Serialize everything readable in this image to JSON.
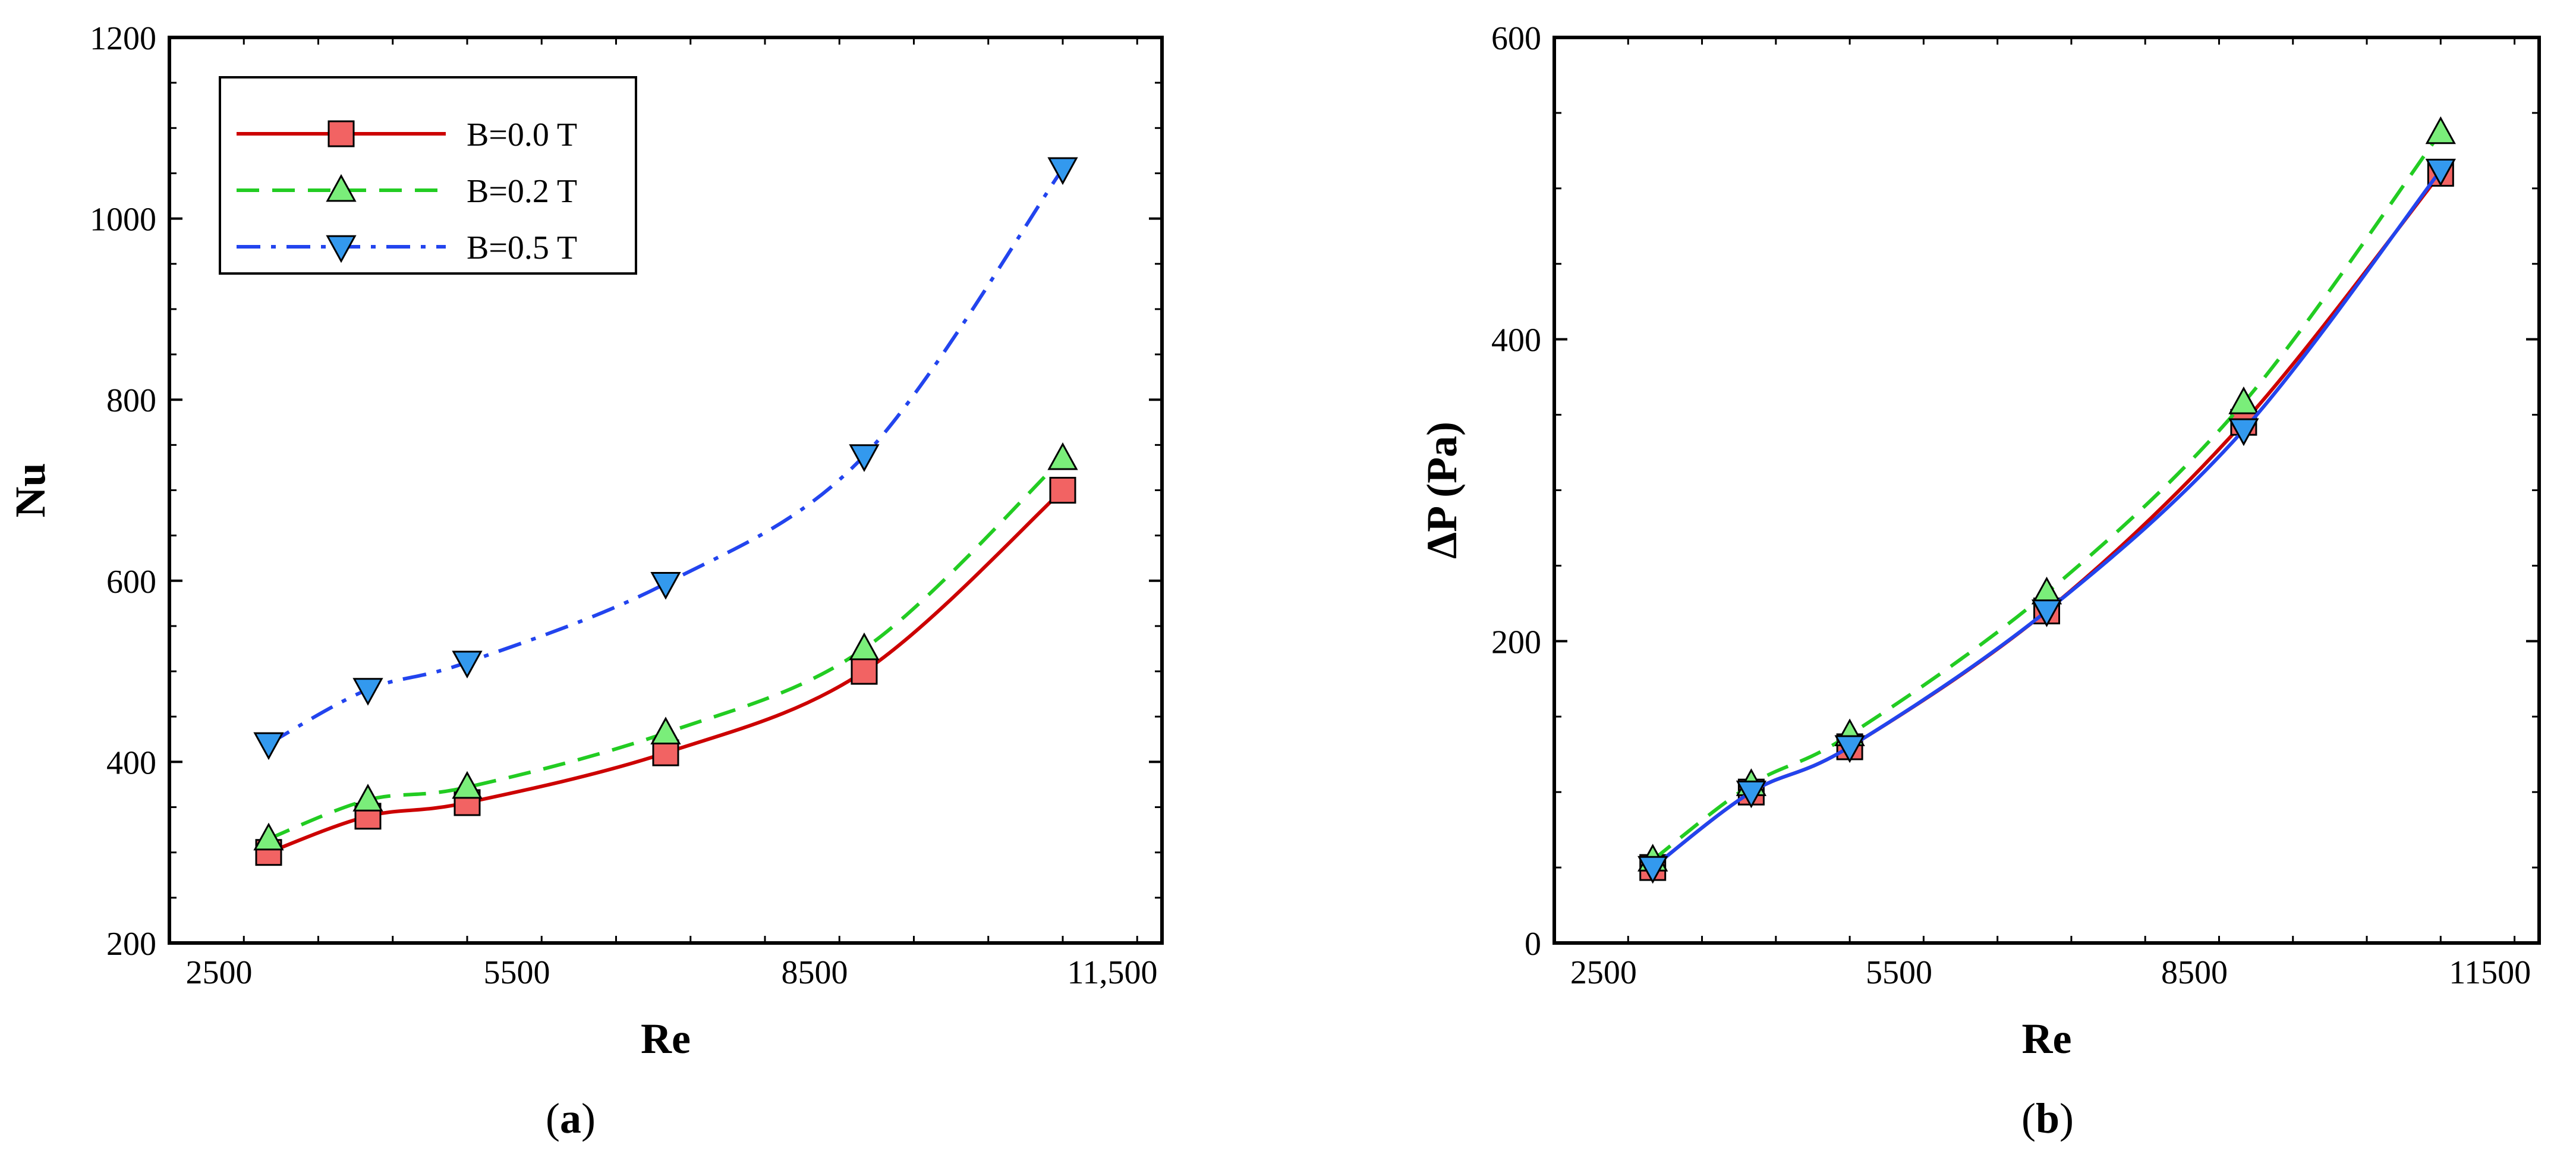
{
  "chart_data": [
    {
      "type": "line",
      "panel": "a",
      "caption_open": "(",
      "caption_label": "a",
      "caption_close": ")",
      "xlabel": "Re",
      "ylabel": "Nu",
      "xlim": [
        2000,
        12000
      ],
      "ylim": [
        200,
        1200
      ],
      "xticks": [
        2500,
        5500,
        8500,
        11500
      ],
      "xtick_labels": [
        "2500",
        "5500",
        "8500",
        "11,500"
      ],
      "yticks": [
        200,
        400,
        600,
        800,
        1000,
        1200
      ],
      "ytick_labels": [
        "200",
        "400",
        "600",
        "800",
        "1000",
        "1200"
      ],
      "legend_position": "top-left",
      "series": [
        {
          "name": "B=0.0 T",
          "color": "#cc0000",
          "marker_fill": "#f26363",
          "marker": "square",
          "dash": "solid",
          "x": [
            3000,
            4000,
            5000,
            7000,
            9000,
            11000
          ],
          "values": [
            300,
            340,
            355,
            410,
            500,
            700
          ]
        },
        {
          "name": "B=0.2 T",
          "color": "#22cc22",
          "marker_fill": "#7aee7a",
          "marker": "triangle-up",
          "dash": "dashed",
          "x": [
            3000,
            4000,
            5000,
            7000,
            9000,
            11000
          ],
          "values": [
            315,
            358,
            372,
            432,
            525,
            735
          ]
        },
        {
          "name": "B=0.5 T",
          "color": "#2244ee",
          "marker_fill": "#3399ee",
          "marker": "triangle-down",
          "dash": "dashdot",
          "x": [
            3000,
            4000,
            5000,
            7000,
            9000,
            11000
          ],
          "values": [
            420,
            480,
            510,
            597,
            738,
            1055
          ]
        }
      ]
    },
    {
      "type": "line",
      "panel": "b",
      "caption_open": "(",
      "caption_label": "b",
      "caption_close": ")",
      "xlabel": "Re",
      "ylabel": "ΔP (Pa)",
      "xlim": [
        2000,
        12000
      ],
      "ylim": [
        0,
        600
      ],
      "xticks": [
        2500,
        5500,
        8500,
        11500
      ],
      "xtick_labels": [
        "2500",
        "5500",
        "8500",
        "11500"
      ],
      "yticks": [
        0,
        200,
        400,
        600
      ],
      "ytick_labels": [
        "0",
        "200",
        "400",
        "600"
      ],
      "series": [
        {
          "name": "B=0.0 T",
          "color": "#cc0000",
          "marker_fill": "#f26363",
          "marker": "square",
          "dash": "solid",
          "x": [
            3000,
            4000,
            5000,
            7000,
            9000,
            11000
          ],
          "values": [
            50,
            100,
            130,
            220,
            345,
            510
          ]
        },
        {
          "name": "B=0.2 T",
          "color": "#22cc22",
          "marker_fill": "#7aee7a",
          "marker": "triangle-up",
          "dash": "dashed",
          "x": [
            3000,
            4000,
            5000,
            7000,
            9000,
            11000
          ],
          "values": [
            55,
            105,
            138,
            232,
            358,
            537
          ]
        },
        {
          "name": "B=0.5 T",
          "color": "#2244ee",
          "marker_fill": "#3399ee",
          "marker": "triangle-down",
          "dash": "solid",
          "x": [
            3000,
            4000,
            5000,
            7000,
            9000,
            11000
          ],
          "values": [
            50,
            100,
            130,
            220,
            340,
            512
          ]
        }
      ]
    }
  ]
}
